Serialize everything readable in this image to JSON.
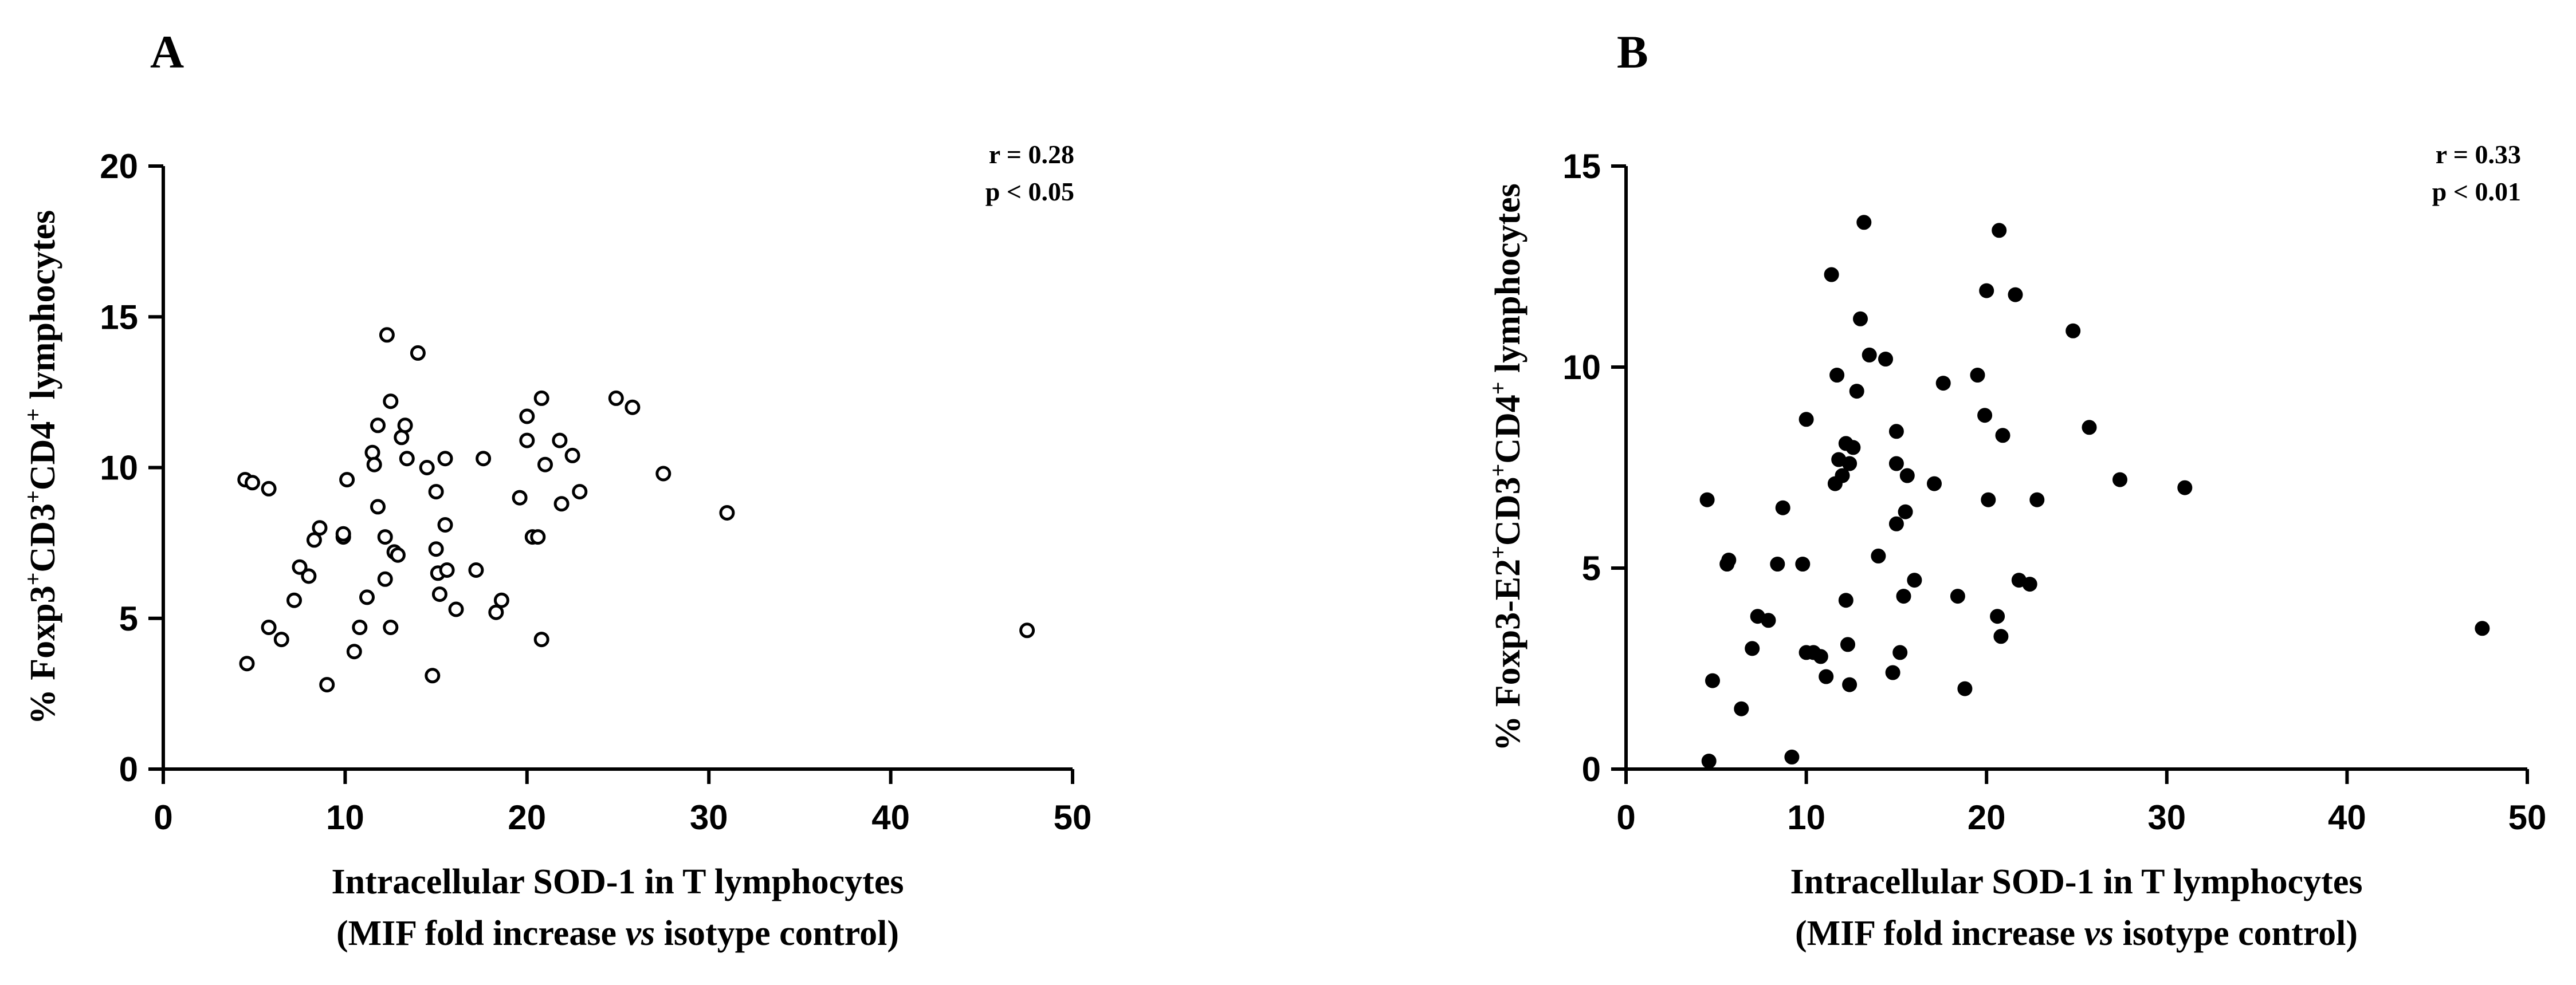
{
  "chart_data": [
    {
      "type": "scatter",
      "panel_label": "A",
      "marker": "open-circle",
      "ylabel": [
        "% Foxp3",
        "+",
        "CD3",
        "+",
        "CD4",
        "+",
        " lymphocytes"
      ],
      "xlabel": [
        "Intracellular SOD-1 in T lymphocytes",
        "(MIF fold increase ",
        "vs",
        " isotype control)"
      ],
      "annotation": [
        "r = 0.28",
        "p < 0.05"
      ],
      "xlim": [
        0,
        50
      ],
      "ylim": [
        0,
        20
      ],
      "xticks": [
        "0",
        "10",
        "20",
        "30",
        "40",
        "50"
      ],
      "yticks": [
        "0",
        "5",
        "10",
        "15",
        "20"
      ],
      "xtick_values": [
        0,
        10,
        20,
        30,
        40,
        50
      ],
      "ytick_values": [
        0,
        5,
        10,
        15,
        20
      ],
      "points": [
        [
          4.5,
          9.6
        ],
        [
          4.9,
          9.5
        ],
        [
          5.8,
          9.3
        ],
        [
          4.6,
          3.5
        ],
        [
          5.8,
          4.7
        ],
        [
          6.5,
          4.3
        ],
        [
          7.2,
          5.6
        ],
        [
          7.5,
          6.7
        ],
        [
          8.0,
          6.4
        ],
        [
          8.3,
          7.6
        ],
        [
          8.6,
          8.0
        ],
        [
          9.0,
          2.8
        ],
        [
          9.9,
          7.7
        ],
        [
          9.9,
          7.8
        ],
        [
          10.1,
          9.6
        ],
        [
          10.5,
          3.9
        ],
        [
          10.8,
          4.7
        ],
        [
          11.2,
          5.7
        ],
        [
          11.5,
          10.5
        ],
        [
          11.6,
          10.1
        ],
        [
          11.8,
          11.4
        ],
        [
          11.8,
          8.7
        ],
        [
          12.2,
          7.7
        ],
        [
          12.2,
          6.3
        ],
        [
          12.3,
          14.4
        ],
        [
          12.5,
          12.2
        ],
        [
          12.5,
          4.7
        ],
        [
          12.7,
          7.2
        ],
        [
          12.9,
          7.1
        ],
        [
          13.1,
          11.0
        ],
        [
          13.3,
          11.4
        ],
        [
          13.4,
          10.3
        ],
        [
          14.0,
          13.8
        ],
        [
          14.5,
          10.0
        ],
        [
          14.8,
          3.1
        ],
        [
          15.0,
          9.2
        ],
        [
          15.0,
          7.3
        ],
        [
          15.1,
          6.5
        ],
        [
          15.2,
          5.8
        ],
        [
          15.5,
          10.3
        ],
        [
          15.5,
          8.1
        ],
        [
          15.6,
          6.6
        ],
        [
          16.1,
          5.3
        ],
        [
          17.2,
          6.6
        ],
        [
          17.6,
          10.3
        ],
        [
          18.3,
          5.2
        ],
        [
          18.6,
          5.6
        ],
        [
          19.6,
          9.0
        ],
        [
          20.0,
          10.9
        ],
        [
          20.0,
          11.7
        ],
        [
          20.3,
          7.7
        ],
        [
          20.6,
          7.7
        ],
        [
          20.8,
          12.3
        ],
        [
          20.8,
          4.3
        ],
        [
          21.0,
          10.1
        ],
        [
          21.8,
          10.9
        ],
        [
          21.9,
          8.8
        ],
        [
          22.5,
          10.4
        ],
        [
          22.9,
          9.2
        ],
        [
          24.9,
          12.3
        ],
        [
          25.8,
          12.0
        ],
        [
          27.5,
          9.8
        ],
        [
          31.0,
          8.5
        ],
        [
          47.5,
          4.6
        ]
      ]
    },
    {
      "type": "scatter",
      "panel_label": "B",
      "marker": "filled-circle",
      "ylabel": [
        "% Foxp3-E2",
        "+",
        "CD3",
        "+",
        "CD4",
        "+",
        " lymphocytes"
      ],
      "xlabel": [
        "Intracellular SOD-1 in T lymphocytes",
        "(MIF fold increase ",
        "vs",
        " isotype control)"
      ],
      "annotation": [
        "r = 0.33",
        "p < 0.01"
      ],
      "xlim": [
        0,
        50
      ],
      "ylim": [
        0,
        15
      ],
      "xticks": [
        "0",
        "10",
        "20",
        "30",
        "40",
        "50"
      ],
      "yticks": [
        "0",
        "5",
        "10",
        "15"
      ],
      "xtick_values": [
        0,
        10,
        20,
        30,
        40,
        50
      ],
      "ytick_values": [
        0,
        5,
        10,
        15
      ],
      "points": [
        [
          4.5,
          6.7
        ],
        [
          4.6,
          0.2
        ],
        [
          4.8,
          2.2
        ],
        [
          5.6,
          5.1
        ],
        [
          5.7,
          5.2
        ],
        [
          6.4,
          1.5
        ],
        [
          7.0,
          3.0
        ],
        [
          7.3,
          3.8
        ],
        [
          7.9,
          3.7
        ],
        [
          8.4,
          5.1
        ],
        [
          8.7,
          6.5
        ],
        [
          9.2,
          0.3
        ],
        [
          9.8,
          5.1
        ],
        [
          10.0,
          8.7
        ],
        [
          10.0,
          2.9
        ],
        [
          10.4,
          2.9
        ],
        [
          10.8,
          2.8
        ],
        [
          11.1,
          2.3
        ],
        [
          11.4,
          12.3
        ],
        [
          11.6,
          7.1
        ],
        [
          11.7,
          9.8
        ],
        [
          11.8,
          7.7
        ],
        [
          12.0,
          7.3
        ],
        [
          12.2,
          8.1
        ],
        [
          12.2,
          4.2
        ],
        [
          12.3,
          3.1
        ],
        [
          12.4,
          2.1
        ],
        [
          12.4,
          7.6
        ],
        [
          12.6,
          8.0
        ],
        [
          12.8,
          9.4
        ],
        [
          13.0,
          11.2
        ],
        [
          13.2,
          13.6
        ],
        [
          13.5,
          10.3
        ],
        [
          14.0,
          5.3
        ],
        [
          14.4,
          10.2
        ],
        [
          14.8,
          2.4
        ],
        [
          15.0,
          7.6
        ],
        [
          15.0,
          6.1
        ],
        [
          15.0,
          8.4
        ],
        [
          15.2,
          2.9
        ],
        [
          15.4,
          4.3
        ],
        [
          15.5,
          6.4
        ],
        [
          15.6,
          7.3
        ],
        [
          16.0,
          4.7
        ],
        [
          17.1,
          7.1
        ],
        [
          17.6,
          9.6
        ],
        [
          18.4,
          4.3
        ],
        [
          18.8,
          2.0
        ],
        [
          19.5,
          9.8
        ],
        [
          19.9,
          8.8
        ],
        [
          20.0,
          11.9
        ],
        [
          20.1,
          6.7
        ],
        [
          20.6,
          3.8
        ],
        [
          20.7,
          13.4
        ],
        [
          20.8,
          3.3
        ],
        [
          20.9,
          8.3
        ],
        [
          21.6,
          11.8
        ],
        [
          21.8,
          4.7
        ],
        [
          22.4,
          4.6
        ],
        [
          22.8,
          6.7
        ],
        [
          24.8,
          10.9
        ],
        [
          25.7,
          8.5
        ],
        [
          27.4,
          7.2
        ],
        [
          31.0,
          7.0
        ],
        [
          47.5,
          3.5
        ]
      ]
    }
  ]
}
